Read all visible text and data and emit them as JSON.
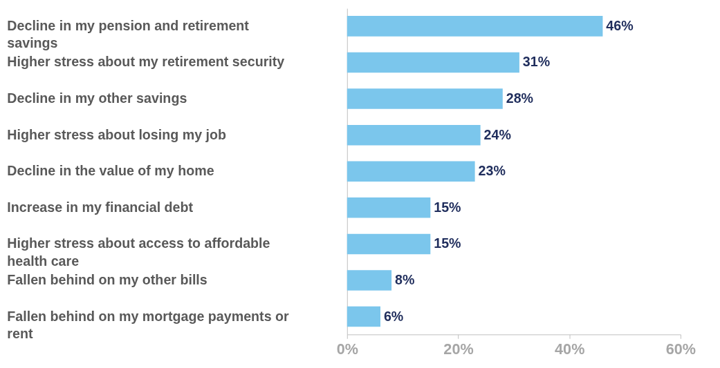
{
  "chart_data": {
    "type": "bar",
    "orientation": "horizontal",
    "categories": [
      "Decline in my pension and retirement savings",
      "Higher stress about my retirement security",
      "Decline in my other savings",
      "Higher stress about losing my job",
      "Decline in the value of my home",
      "Increase in my financial debt",
      "Higher stress about access to affordable health care",
      "Fallen behind on my other bills",
      "Fallen behind on my mortgage payments or rent"
    ],
    "values": [
      46,
      31,
      28,
      24,
      23,
      15,
      15,
      8,
      6
    ],
    "value_labels": [
      "46%",
      "31%",
      "28%",
      "24%",
      "23%",
      "15%",
      "15%",
      "8%",
      "6%"
    ],
    "color": "#7bc6ec",
    "xlim": [
      0,
      60
    ],
    "xticks": [
      {
        "value": 0,
        "label": "0%"
      },
      {
        "value": 20,
        "label": "20%"
      },
      {
        "value": 40,
        "label": "40%"
      },
      {
        "value": 60,
        "label": "60%"
      }
    ],
    "grid": false
  }
}
